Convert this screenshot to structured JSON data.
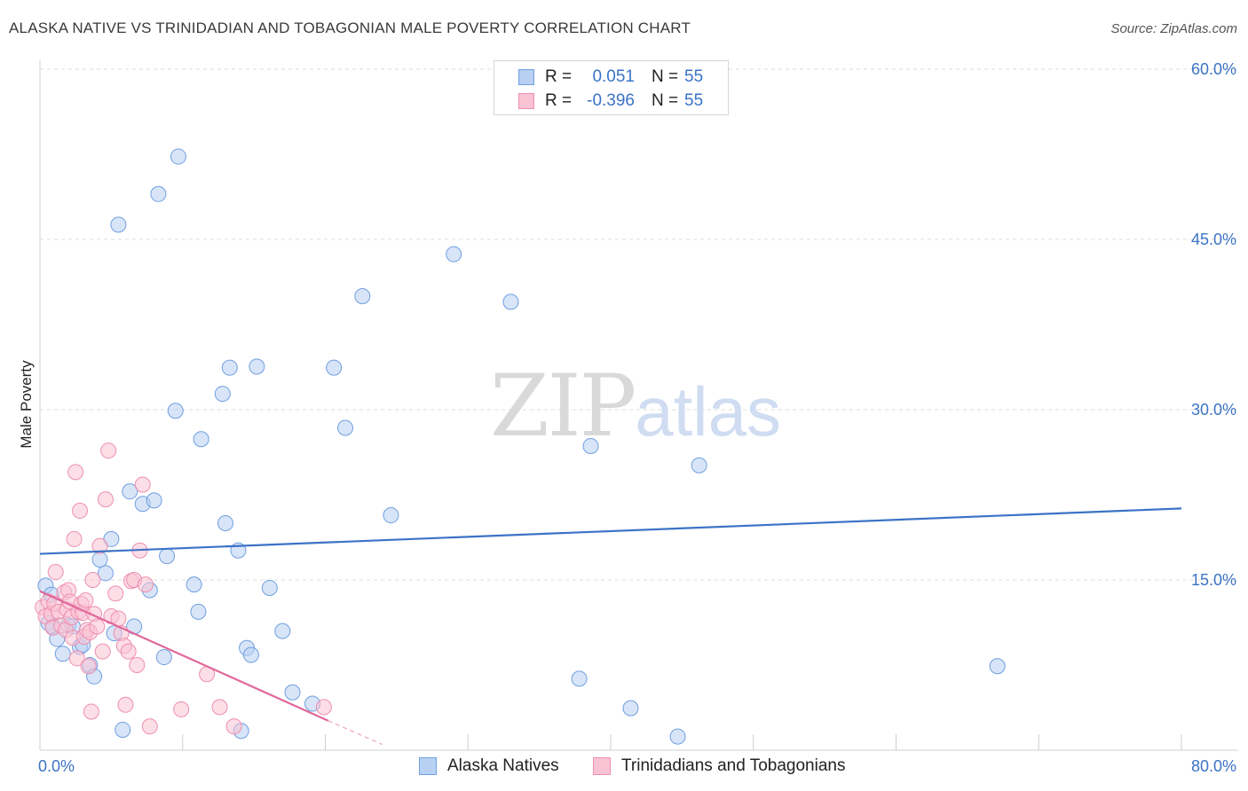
{
  "title": "ALASKA NATIVE VS TRINIDADIAN AND TOBAGONIAN MALE POVERTY CORRELATION CHART",
  "source": "Source: ZipAtlas.com",
  "watermark": {
    "zip": "ZIP",
    "atlas": "atlas"
  },
  "legend": {
    "rows": [
      {
        "r_label": "R =",
        "r_value": "0.051",
        "n_label": "N =",
        "n_value": "55",
        "fill": "#b8d0f2",
        "stroke": "#6f9fe0"
      },
      {
        "r_label": "R =",
        "r_value": "-0.396",
        "n_label": "N =",
        "n_value": "55",
        "fill": "#f9c3d4",
        "stroke": "#ee8fb0"
      }
    ]
  },
  "bottom_legend": [
    {
      "label": "Alaska Natives",
      "fill": "#b8d0f2",
      "stroke": "#6f9fe0"
    },
    {
      "label": "Trinidadians and Tobagonians",
      "fill": "#f9c3d4",
      "stroke": "#ee8fb0"
    }
  ],
  "chart_data": {
    "type": "scatter",
    "title": "ALASKA NATIVE VS TRINIDADIAN AND TOBAGONIAN MALE POVERTY CORRELATION CHART",
    "xlabel": "",
    "ylabel": "Male Poverty",
    "xlim": [
      0,
      80
    ],
    "ylim": [
      0,
      62
    ],
    "x_tick_labels": [
      "0.0%",
      "80.0%"
    ],
    "y_ticks": [
      15,
      30,
      45,
      60
    ],
    "y_tick_labels": [
      "15.0%",
      "30.0%",
      "45.0%",
      "60.0%"
    ],
    "grid": true,
    "series": [
      {
        "name": "Alaska Natives",
        "color": "#3b73c6",
        "fill": "#b8d0f2",
        "trend": {
          "x": [
            0,
            80
          ],
          "y": [
            17.3,
            21.3
          ],
          "style": "solid"
        },
        "points": [
          [
            0.4,
            14.5
          ],
          [
            0.6,
            11.2
          ],
          [
            0.9,
            10.9
          ],
          [
            1.2,
            9.8
          ],
          [
            1.6,
            8.5
          ],
          [
            2.0,
            11.0
          ],
          [
            2.3,
            10.9
          ],
          [
            2.8,
            9.1
          ],
          [
            3.0,
            9.3
          ],
          [
            3.5,
            7.5
          ],
          [
            3.8,
            6.5
          ],
          [
            4.2,
            16.8
          ],
          [
            4.6,
            15.6
          ],
          [
            5.0,
            18.6
          ],
          [
            5.2,
            10.3
          ],
          [
            5.5,
            46.3
          ],
          [
            5.8,
            1.8
          ],
          [
            6.3,
            22.8
          ],
          [
            6.6,
            10.9
          ],
          [
            7.2,
            21.7
          ],
          [
            7.7,
            14.1
          ],
          [
            8.0,
            22.0
          ],
          [
            8.3,
            49.0
          ],
          [
            8.7,
            8.2
          ],
          [
            8.9,
            17.1
          ],
          [
            9.5,
            29.9
          ],
          [
            9.7,
            52.3
          ],
          [
            10.8,
            14.6
          ],
          [
            11.1,
            12.2
          ],
          [
            11.3,
            27.4
          ],
          [
            12.8,
            31.4
          ],
          [
            13.0,
            20.0
          ],
          [
            13.3,
            33.7
          ],
          [
            13.9,
            17.6
          ],
          [
            14.1,
            1.7
          ],
          [
            14.5,
            9.0
          ],
          [
            14.8,
            8.4
          ],
          [
            15.2,
            33.8
          ],
          [
            16.1,
            14.3
          ],
          [
            17.0,
            10.5
          ],
          [
            17.7,
            5.1
          ],
          [
            19.1,
            4.1
          ],
          [
            20.6,
            33.7
          ],
          [
            21.4,
            28.4
          ],
          [
            22.6,
            40.0
          ],
          [
            24.6,
            20.7
          ],
          [
            29.0,
            43.7
          ],
          [
            33.0,
            39.5
          ],
          [
            37.8,
            6.3
          ],
          [
            38.6,
            26.8
          ],
          [
            41.4,
            3.7
          ],
          [
            44.7,
            1.2
          ],
          [
            46.2,
            25.1
          ],
          [
            67.1,
            7.4
          ],
          [
            0.8,
            13.7
          ]
        ]
      },
      {
        "name": "Trinidadians and Tobagonians",
        "color": "#e0679a",
        "fill": "#f9c3d4",
        "trend": {
          "x": [
            0,
            20.2
          ],
          "y": [
            14.0,
            2.6
          ],
          "style": "solid",
          "extension": {
            "x": [
              20.2,
              24.0
            ],
            "y": [
              2.6,
              0.5
            ],
            "style": "dashed"
          }
        },
        "points": [
          [
            0.2,
            12.6
          ],
          [
            0.4,
            11.8
          ],
          [
            0.6,
            13.1
          ],
          [
            0.8,
            12.0
          ],
          [
            0.9,
            10.8
          ],
          [
            1.0,
            12.9
          ],
          [
            1.1,
            15.7
          ],
          [
            1.3,
            12.2
          ],
          [
            1.5,
            11.0
          ],
          [
            1.7,
            13.9
          ],
          [
            1.8,
            10.6
          ],
          [
            1.9,
            12.4
          ],
          [
            2.0,
            14.1
          ],
          [
            2.1,
            13.1
          ],
          [
            2.2,
            11.7
          ],
          [
            2.3,
            9.9
          ],
          [
            2.4,
            18.6
          ],
          [
            2.5,
            24.5
          ],
          [
            2.6,
            8.1
          ],
          [
            2.7,
            12.2
          ],
          [
            2.8,
            21.1
          ],
          [
            2.9,
            12.9
          ],
          [
            3.0,
            12.1
          ],
          [
            3.1,
            10.0
          ],
          [
            3.2,
            13.2
          ],
          [
            3.3,
            10.6
          ],
          [
            3.4,
            7.4
          ],
          [
            3.5,
            10.4
          ],
          [
            3.6,
            3.4
          ],
          [
            3.7,
            15.0
          ],
          [
            3.8,
            12.0
          ],
          [
            4.0,
            10.9
          ],
          [
            4.2,
            18.0
          ],
          [
            4.4,
            8.7
          ],
          [
            4.6,
            22.1
          ],
          [
            4.8,
            26.4
          ],
          [
            5.0,
            11.8
          ],
          [
            5.3,
            13.8
          ],
          [
            5.5,
            11.6
          ],
          [
            5.7,
            10.3
          ],
          [
            5.9,
            9.2
          ],
          [
            6.0,
            4.0
          ],
          [
            6.2,
            8.7
          ],
          [
            6.4,
            14.9
          ],
          [
            6.6,
            15.0
          ],
          [
            6.8,
            7.5
          ],
          [
            7.0,
            17.6
          ],
          [
            7.2,
            23.4
          ],
          [
            7.4,
            14.6
          ],
          [
            7.7,
            2.1
          ],
          [
            9.9,
            3.6
          ],
          [
            11.7,
            6.7
          ],
          [
            12.6,
            3.8
          ],
          [
            13.6,
            2.1
          ],
          [
            19.9,
            3.8
          ]
        ]
      }
    ]
  }
}
